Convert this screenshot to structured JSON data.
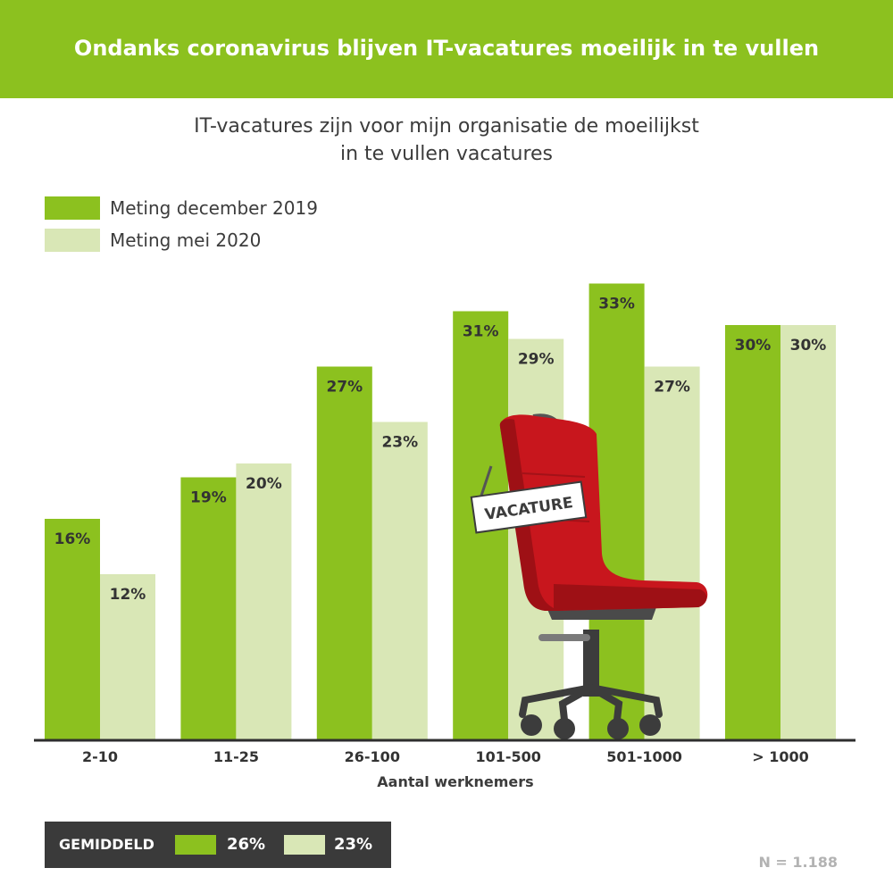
{
  "banner": {
    "title": "Ondanks coronavirus blijven IT-vacatures moeilijk in te vullen"
  },
  "colors": {
    "banner": "#8cc11f",
    "dark_green": "#8cc11f",
    "light_green": "#d9e7b6",
    "footer_bg": "#3a3a3a",
    "chair": "#c8161d"
  },
  "chair_sign": "VACATURE",
  "chart_data": {
    "type": "bar",
    "title": "IT-vacatures zijn voor mijn organisatie de moeilijkst in te vullen vacatures",
    "title_lines": [
      "IT-vacatures zijn voor mijn organisatie de moeilijkst",
      "in te vullen vacatures"
    ],
    "categories": [
      "2-10",
      "11-25",
      "26-100",
      "101-500",
      "501-1000",
      "> 1000"
    ],
    "series": [
      {
        "name": "Meting december 2019",
        "values": [
          16,
          19,
          27,
          31,
          33,
          30
        ],
        "labels": [
          "16%",
          "19%",
          "27%",
          "31%",
          "33%",
          "30%"
        ]
      },
      {
        "name": "Meting mei 2020",
        "values": [
          12,
          20,
          23,
          29,
          27,
          30
        ],
        "labels": [
          "12%",
          "20%",
          "23%",
          "29%",
          "27%",
          "30%"
        ]
      }
    ],
    "xlabel": "Aantal werknemers",
    "ylabel": "",
    "ylim": [
      0,
      33
    ],
    "grid": false,
    "legend_position": "top-left"
  },
  "footer": {
    "label": "GEMIDDELD",
    "avg_2019": "26%",
    "avg_2020": "23%",
    "n_note": "N = 1.188"
  }
}
